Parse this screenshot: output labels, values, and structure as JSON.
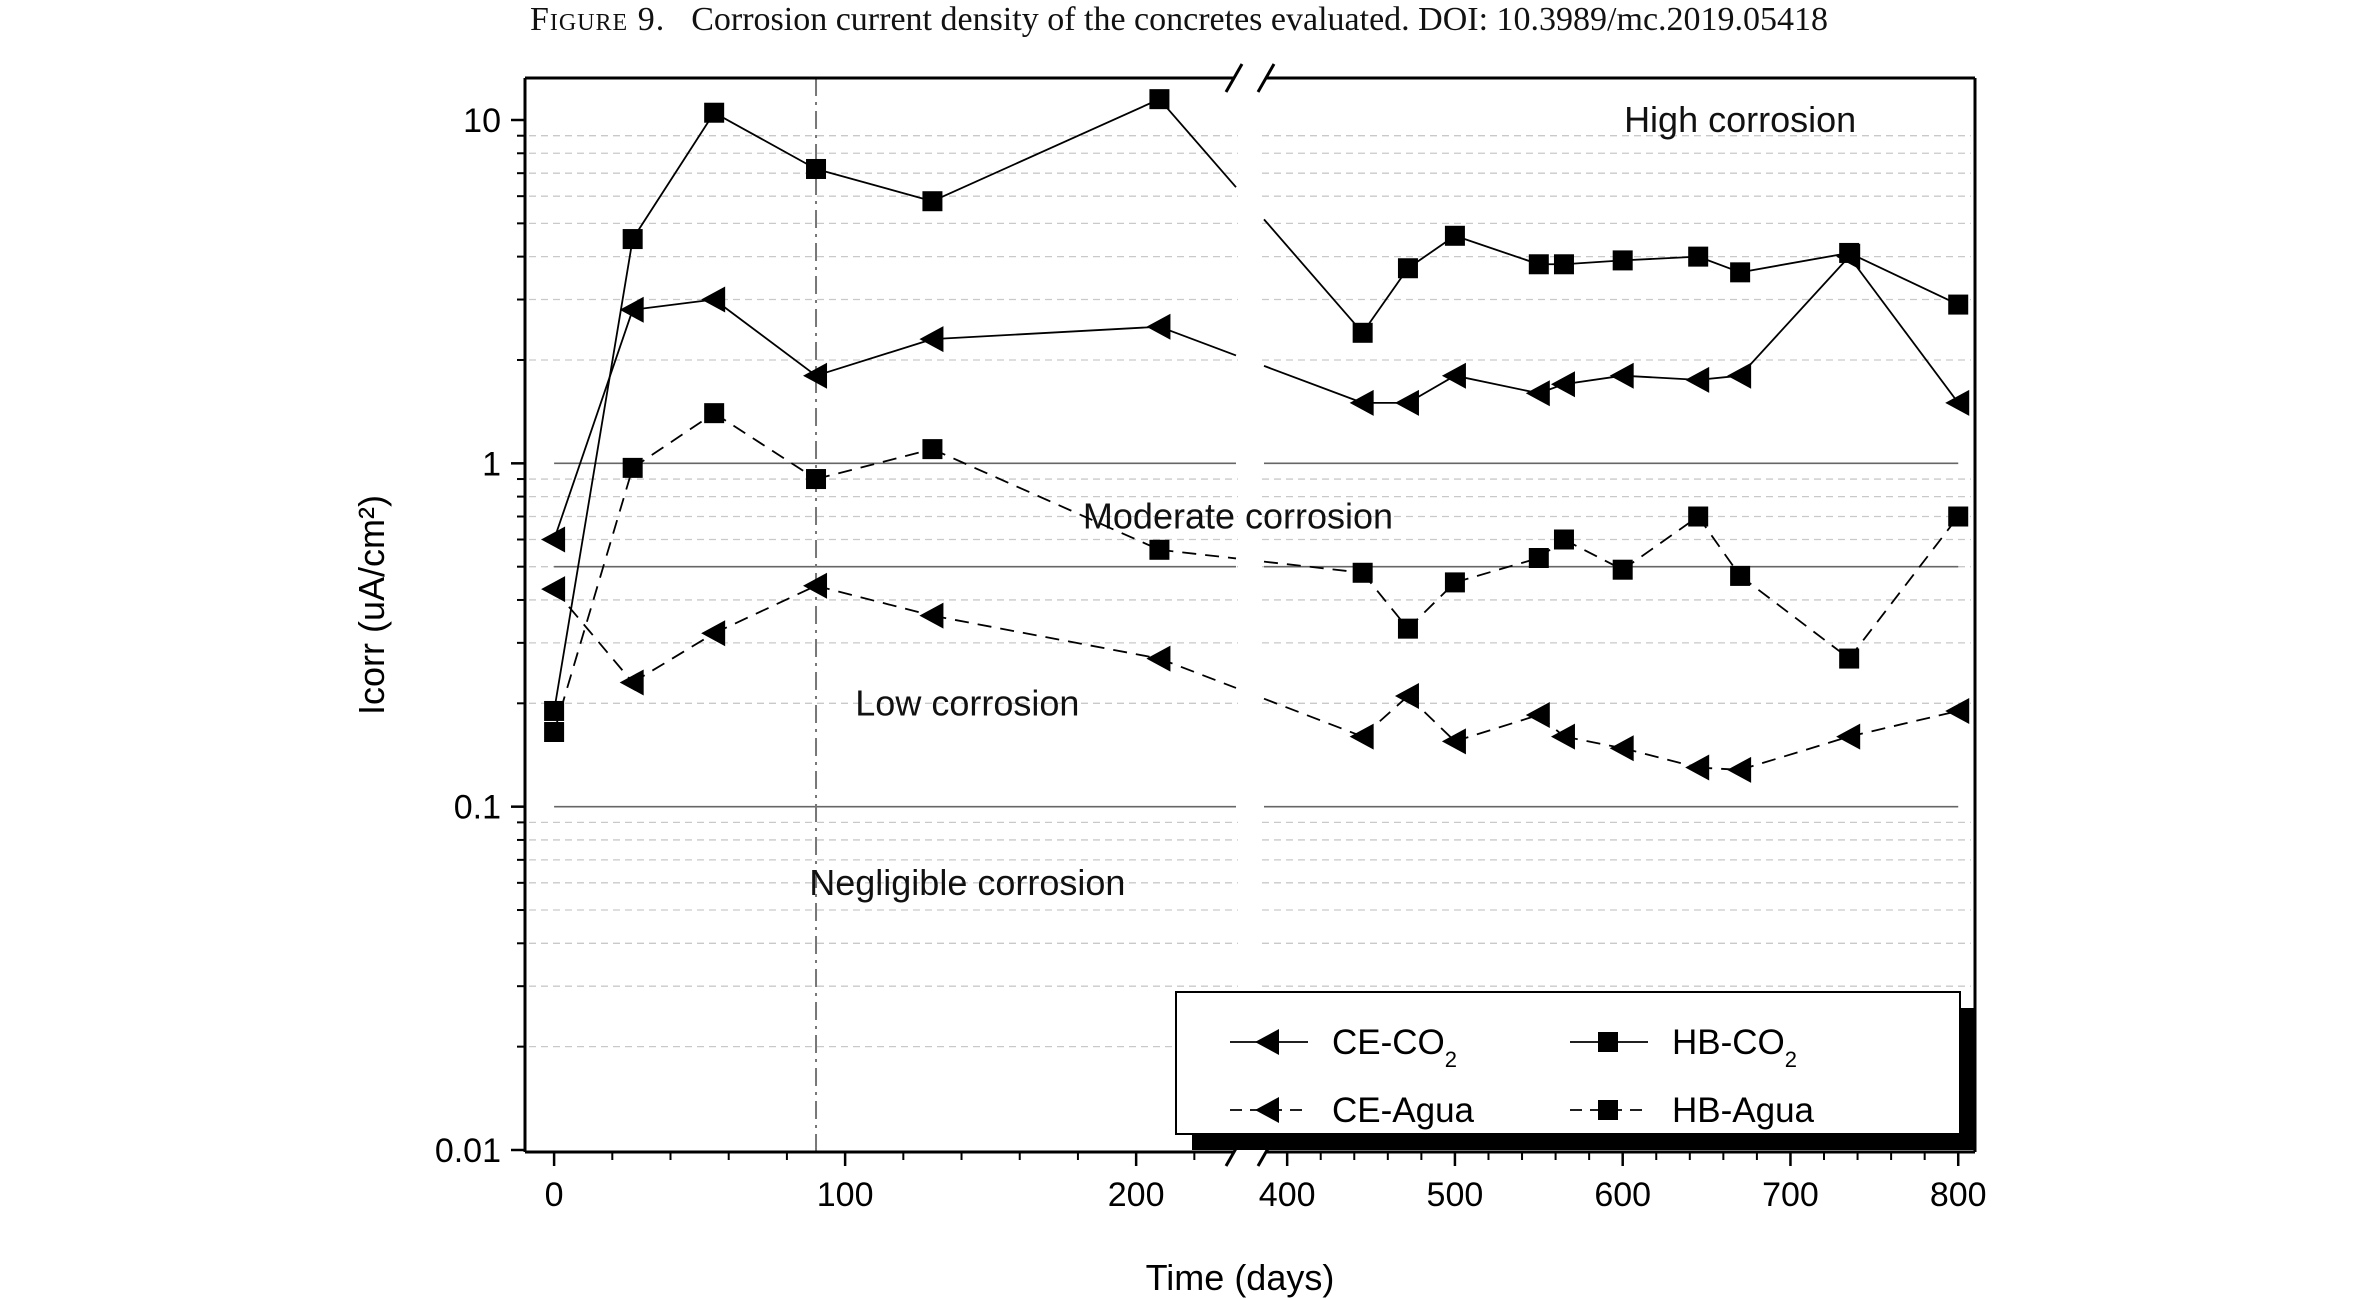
{
  "caption": {
    "label": "Figure 9.",
    "text": "Corrosion current density of the concretes evaluated. DOI: 10.3989/mc.2019.05418"
  },
  "chart_data": {
    "type": "line",
    "xlabel": "Time (days)",
    "ylabel": "Icorr (uA/cm²)",
    "y_scale": "log",
    "ylim": [
      0.01,
      15
    ],
    "x_axis_break": [
      235,
      385
    ],
    "xlim": [
      -10,
      810
    ],
    "x_ticks": [
      "0",
      "100",
      "200",
      "400",
      "500",
      "600",
      "700",
      "800"
    ],
    "y_ticks": [
      "0.01",
      "0.1",
      "1",
      "10"
    ],
    "grid": "dashed minor horizontal gridlines",
    "reference_lines": [
      {
        "y": 1.0
      },
      {
        "y": 0.5
      },
      {
        "y": 0.1
      }
    ],
    "vertical_marker": {
      "x": 90,
      "style": "dash-dot"
    },
    "zone_labels": [
      {
        "text": "High corrosion",
        "x": 670,
        "y": 10
      },
      {
        "text": "Moderate corrosion",
        "x": 235,
        "y": 0.7
      },
      {
        "text": "Low corrosion",
        "x": 142,
        "y": 0.2
      },
      {
        "text": "Negligible corrosion",
        "x": 142,
        "y": 0.06
      }
    ],
    "legend_position": "bottom-right",
    "series": [
      {
        "name": "CE-CO2",
        "marker": "triangle-left",
        "line": "solid",
        "x": [
          0,
          27,
          55,
          90,
          130,
          208,
          445,
          472,
          500,
          550,
          565,
          600,
          645,
          670,
          735,
          800
        ],
        "y": [
          0.6,
          2.8,
          3.0,
          1.8,
          2.3,
          2.5,
          1.5,
          1.5,
          1.8,
          1.6,
          1.7,
          1.8,
          1.75,
          1.8,
          4.0,
          1.5
        ]
      },
      {
        "name": "HB-CO2",
        "marker": "square",
        "line": "solid",
        "x": [
          0,
          27,
          55,
          90,
          130,
          208,
          445,
          472,
          500,
          550,
          565,
          600,
          645,
          670,
          735,
          800
        ],
        "y": [
          0.19,
          4.5,
          10.5,
          7.2,
          5.8,
          11.5,
          2.4,
          3.7,
          4.6,
          3.8,
          3.8,
          3.9,
          4.0,
          3.6,
          4.1,
          2.9
        ]
      },
      {
        "name": "CE-Agua",
        "marker": "triangle-left",
        "line": "dashed",
        "x": [
          0,
          27,
          55,
          90,
          130,
          208,
          445,
          472,
          500,
          550,
          565,
          600,
          645,
          670,
          735,
          800
        ],
        "y": [
          0.43,
          0.23,
          0.32,
          0.44,
          0.36,
          0.27,
          0.16,
          0.21,
          0.155,
          0.185,
          0.16,
          0.148,
          0.13,
          0.128,
          0.16,
          0.19
        ]
      },
      {
        "name": "HB-Agua",
        "marker": "square",
        "line": "dashed",
        "x": [
          0,
          27,
          55,
          90,
          130,
          208,
          445,
          472,
          500,
          550,
          565,
          600,
          645,
          670,
          735,
          800
        ],
        "y": [
          0.165,
          0.97,
          1.4,
          0.9,
          1.1,
          0.56,
          0.48,
          0.33,
          0.45,
          0.53,
          0.6,
          0.49,
          0.7,
          0.47,
          0.27,
          0.7
        ]
      }
    ]
  }
}
